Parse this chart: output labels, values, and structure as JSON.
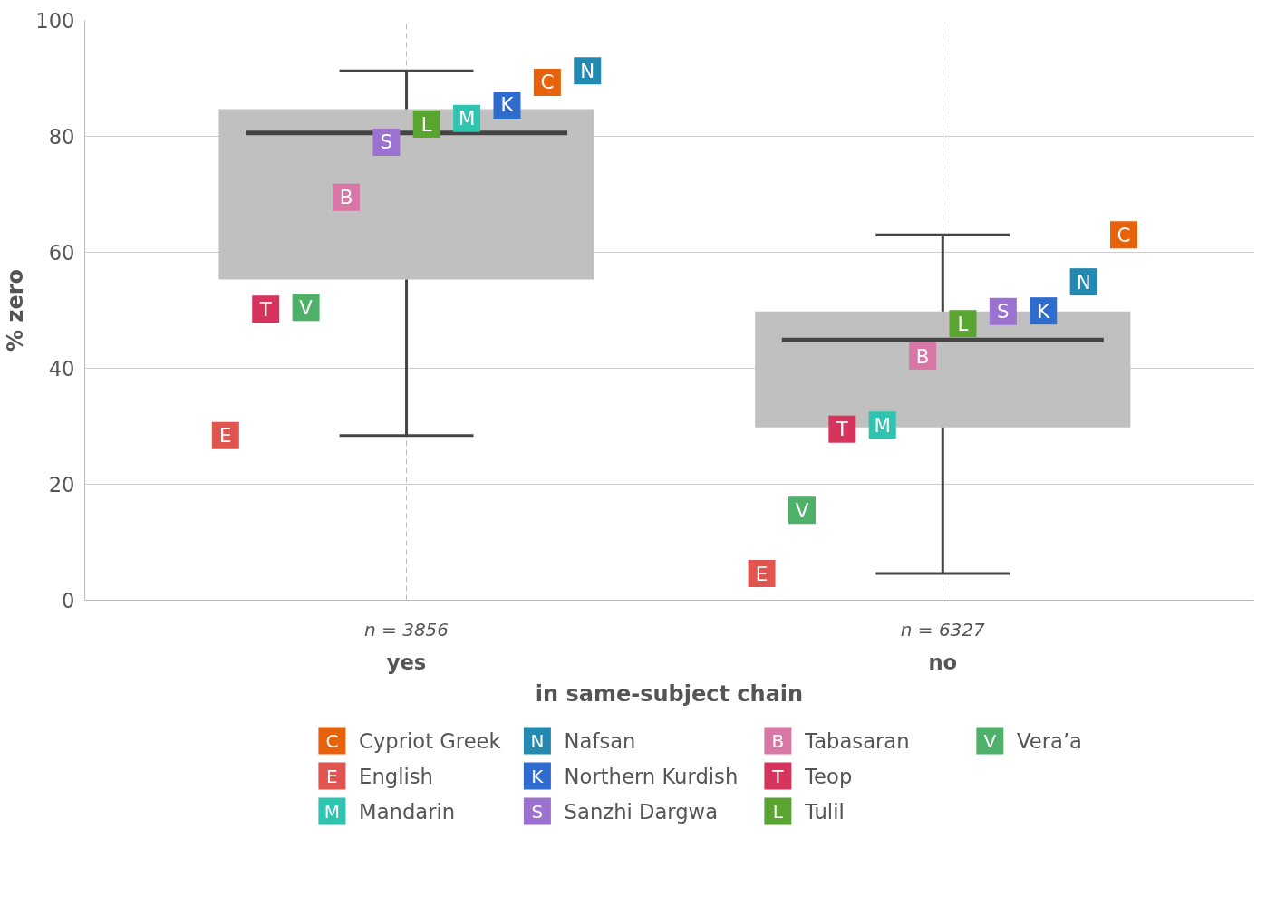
{
  "chart_data": {
    "type": "box",
    "xlabel": "in same-subject chain",
    "ylabel": "% zero",
    "categories": [
      "yes",
      "no"
    ],
    "boxes": [
      {
        "low": 28.4,
        "q1": 55.3,
        "median": 80.6,
        "q3": 84.7,
        "high": 91.3
      },
      {
        "low": 4.6,
        "q1": 29.8,
        "median": 44.9,
        "q3": 49.8,
        "high": 63.0
      }
    ],
    "color": "#c0c0c0",
    "series": [
      {
        "name": "Cypriot Greek",
        "type": "scatter",
        "color": "#e8620c",
        "x": [
          "yes",
          "no"
        ],
        "values": [
          89.3,
          63.0
        ],
        "value_labels": [
          "C",
          "C"
        ]
      },
      {
        "name": "English",
        "type": "scatter",
        "color": "#e05550",
        "x": [
          "yes",
          "no"
        ],
        "values": [
          28.4,
          4.6
        ],
        "value_labels": [
          "E",
          "E"
        ]
      },
      {
        "name": "Mandarin",
        "type": "scatter",
        "color": "#2ec4b0",
        "x": [
          "yes",
          "no"
        ],
        "values": [
          83.1,
          30.2
        ],
        "value_labels": [
          "M",
          "M"
        ]
      },
      {
        "name": "Nafsan",
        "type": "scatter",
        "color": "#2389b0",
        "x": [
          "yes",
          "no"
        ],
        "values": [
          91.3,
          54.9
        ],
        "value_labels": [
          "N",
          "N"
        ]
      },
      {
        "name": "Northern Kurdish",
        "type": "scatter",
        "color": "#2f6ccf",
        "x": [
          "yes",
          "no"
        ],
        "values": [
          85.4,
          49.9
        ],
        "value_labels": [
          "K",
          "K"
        ]
      },
      {
        "name": "Sanzhi Dargwa",
        "type": "scatter",
        "color": "#9b72cf",
        "x": [
          "yes",
          "no"
        ],
        "values": [
          79.0,
          49.8
        ],
        "value_labels": [
          "S",
          "S"
        ]
      },
      {
        "name": "Tabasaran",
        "type": "scatter",
        "color": "#d877a5",
        "x": [
          "yes",
          "no"
        ],
        "values": [
          69.5,
          42.1
        ],
        "value_labels": [
          "B",
          "B"
        ]
      },
      {
        "name": "Teop",
        "type": "scatter",
        "color": "#d6345c",
        "x": [
          "yes",
          "no"
        ],
        "values": [
          50.2,
          29.5
        ],
        "value_labels": [
          "T",
          "T"
        ]
      },
      {
        "name": "Tulil",
        "type": "scatter",
        "color": "#5aa532",
        "x": [
          "yes",
          "no"
        ],
        "values": [
          82.1,
          47.7
        ],
        "value_labels": [
          "L",
          "L"
        ]
      },
      {
        "name": "Vera’a",
        "type": "scatter",
        "color": "#4fb069",
        "x": [
          "yes",
          "no"
        ],
        "values": [
          50.5,
          15.5
        ],
        "value_labels": [
          "V",
          "V"
        ]
      }
    ],
    "annotations": [
      "n = 3856",
      "n = 6327"
    ],
    "ylim": [
      0,
      100
    ],
    "yticks": [
      0,
      20,
      40,
      60,
      80,
      100
    ],
    "grid": true,
    "legend": "bottom",
    "marker": "square"
  }
}
